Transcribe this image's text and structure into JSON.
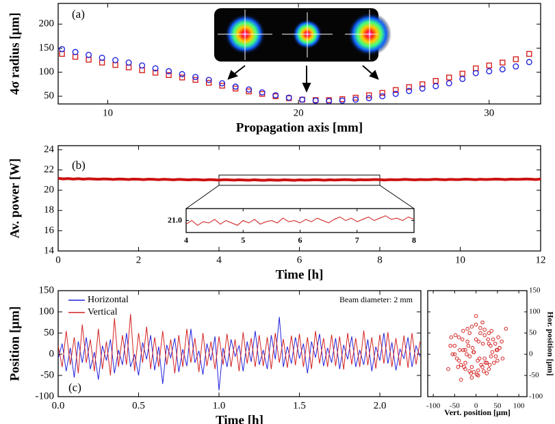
{
  "chart_data": [
    {
      "type": "scatter",
      "label": "(a)",
      "xlabel": "Propagation axis [mm]",
      "ylabel": "4σ radius [μm]",
      "xlim": [
        7.4,
        32.7
      ],
      "ylim": [
        34,
        243
      ],
      "xticks": [
        10,
        20,
        30
      ],
      "yticks": [
        50,
        100,
        150,
        200
      ],
      "x": [
        7.6,
        8.3,
        9,
        9.7,
        10.4,
        11.1,
        11.8,
        12.5,
        13.2,
        13.9,
        14.6,
        15.3,
        16,
        16.7,
        17.4,
        18.1,
        18.8,
        19.5,
        20.2,
        20.9,
        21.6,
        22.3,
        23,
        23.7,
        24.4,
        25.1,
        25.8,
        26.5,
        27.2,
        27.9,
        28.6,
        29.3,
        30,
        30.7,
        31.4,
        32.1
      ],
      "series": [
        {
          "color": "#d42020",
          "marker": "square",
          "values": [
            138,
            132,
            126,
            120,
            115,
            110,
            104,
            99,
            94,
            89,
            84,
            78,
            72,
            66,
            60,
            55,
            50,
            46,
            43,
            42,
            42,
            44,
            47,
            52,
            57,
            63,
            69,
            75,
            82,
            89,
            97,
            108,
            114,
            120,
            127,
            138
          ]
        },
        {
          "color": "#2222dd",
          "marker": "circle",
          "values": [
            148,
            142,
            136,
            130,
            125,
            120,
            114,
            108,
            102,
            96,
            90,
            84,
            77,
            70,
            64,
            58,
            52,
            47,
            43,
            41,
            40,
            41,
            43,
            46,
            50,
            55,
            61,
            66,
            71,
            77,
            86,
            98,
            102,
            106,
            112,
            121
          ]
        }
      ]
    },
    {
      "type": "line",
      "label": "(b)",
      "xlabel": "Time  [h]",
      "ylabel": "Av. power  [W]",
      "xlim": [
        0,
        12
      ],
      "ylim": [
        14,
        24.4
      ],
      "xticks": [
        0,
        2,
        4,
        6,
        8,
        10,
        12
      ],
      "yticks": [
        14,
        16,
        18,
        20,
        22,
        24
      ],
      "x": [
        0,
        0.125,
        0.25,
        0.375,
        0.5,
        0.625,
        0.75,
        0.875,
        1,
        1.125,
        1.25,
        1.375,
        1.5,
        1.625,
        1.75,
        1.875,
        2,
        2.125,
        2.25,
        2.375,
        2.5,
        2.625,
        2.75,
        2.875,
        3,
        3.125,
        3.25,
        3.375,
        3.5,
        3.625,
        3.75,
        3.875,
        4,
        4.125,
        4.25,
        4.375,
        4.5,
        4.625,
        4.75,
        4.875,
        5,
        5.125,
        5.25,
        5.375,
        5.5,
        5.625,
        5.75,
        5.875,
        6,
        6.125,
        6.25,
        6.375,
        6.5,
        6.625,
        6.75,
        6.875,
        7,
        7.125,
        7.25,
        7.375,
        7.5,
        7.625,
        7.75,
        7.875,
        8,
        8.125,
        8.25,
        8.375,
        8.5,
        8.625,
        8.75,
        8.875,
        9,
        9.125,
        9.25,
        9.375,
        9.5,
        9.625,
        9.75,
        9.875,
        10,
        10.125,
        10.25,
        10.375,
        10.5,
        10.625,
        10.75,
        10.875,
        11,
        11.125,
        11.25,
        11.375,
        11.5,
        11.625,
        11.75,
        11.875,
        12
      ],
      "series": [
        {
          "color": "#cc1111",
          "values": [
            21.18,
            21.12,
            21.15,
            21.1,
            21.14,
            21.09,
            21.13,
            21.11,
            21.08,
            21.12,
            21.1,
            21.07,
            21.11,
            21.09,
            21.06,
            21.1,
            21.08,
            21.05,
            21.09,
            21.07,
            21.04,
            21.08,
            21.06,
            21.03,
            21.07,
            21.05,
            21.02,
            21.06,
            21.04,
            21.01,
            21.05,
            21.03,
            21.0,
            21.04,
            21.02,
            21.0,
            21.03,
            21.01,
            20.99,
            21.03,
            21.0,
            20.98,
            21.02,
            21.0,
            20.99,
            21.03,
            21.01,
            20.98,
            21.02,
            21.0,
            21.01,
            21.04,
            21.02,
            20.99,
            21.03,
            21.01,
            21.02,
            21.05,
            21.03,
            21.0,
            21.04,
            21.02,
            21.03,
            21.06,
            21.04,
            21.01,
            21.05,
            21.03,
            21.04,
            21.07,
            21.05,
            21.02,
            21.06,
            21.04,
            21.05,
            21.08,
            21.06,
            21.03,
            21.07,
            21.05,
            21.06,
            21.09,
            21.07,
            21.04,
            21.08,
            21.06,
            21.07,
            21.1,
            21.08,
            21.05,
            21.09,
            21.07,
            21.08,
            21.11,
            21.09,
            21.06,
            21.1
          ]
        }
      ]
    },
    {
      "type": "line",
      "xlim": [
        4,
        8
      ],
      "ylim": [
        20.9,
        21.1
      ],
      "xticks": [
        4,
        5,
        6,
        7,
        8
      ],
      "yticks": [
        {
          "value": 21,
          "label": "21.0"
        }
      ],
      "x": [
        4,
        4.1,
        4.2,
        4.3,
        4.4,
        4.5,
        4.6,
        4.7,
        4.8,
        4.9,
        5,
        5.1,
        5.2,
        5.3,
        5.4,
        5.5,
        5.6,
        5.7,
        5.8,
        5.9,
        6,
        6.1,
        6.2,
        6.3,
        6.4,
        6.5,
        6.6,
        6.7,
        6.8,
        6.9,
        7,
        7.1,
        7.2,
        7.3,
        7.4,
        7.5,
        7.6,
        7.7,
        7.8,
        7.9,
        8
      ],
      "series": [
        {
          "color": "#cc1111",
          "values": [
            20.97,
            21.0,
            20.96,
            20.99,
            20.98,
            21.01,
            20.97,
            21.0,
            20.98,
            20.96,
            21.0,
            20.98,
            21.01,
            20.97,
            20.99,
            21.0,
            20.98,
            21.02,
            20.99,
            21.0,
            20.98,
            21.01,
            20.99,
            21.02,
            21.0,
            20.98,
            21.01,
            21.03,
            21.0,
            21.02,
            20.99,
            21.01,
            21.03,
            21.0,
            21.02,
            21.04,
            21.01,
            21.02,
            21.0,
            21.03,
            21.01
          ]
        }
      ]
    },
    {
      "type": "line",
      "label": "(c)",
      "xlabel": "Time  [h]",
      "ylabel": "Position  [μm]",
      "annotation": "Beam diameter: 2 mm",
      "legend": "upper left",
      "xlim": [
        0,
        2.255
      ],
      "ylim": [
        -100,
        150
      ],
      "xticks": [
        {
          "value": 0,
          "label": "0.0"
        },
        0.5,
        {
          "value": 1,
          "label": "1.0"
        },
        1.5,
        {
          "value": 2,
          "label": "2.0"
        }
      ],
      "yticks": [
        -100,
        -50,
        0,
        50,
        100,
        150
      ],
      "x": [
        0,
        0.025,
        0.05,
        0.075,
        0.1,
        0.125,
        0.15,
        0.175,
        0.2,
        0.225,
        0.25,
        0.275,
        0.3,
        0.325,
        0.35,
        0.375,
        0.4,
        0.425,
        0.45,
        0.475,
        0.5,
        0.525,
        0.55,
        0.575,
        0.6,
        0.625,
        0.65,
        0.675,
        0.7,
        0.725,
        0.75,
        0.775,
        0.8,
        0.825,
        0.85,
        0.875,
        0.9,
        0.925,
        0.95,
        0.975,
        1,
        1.025,
        1.05,
        1.075,
        1.1,
        1.125,
        1.15,
        1.175,
        1.2,
        1.225,
        1.25,
        1.275,
        1.3,
        1.325,
        1.35,
        1.375,
        1.4,
        1.425,
        1.45,
        1.475,
        1.5,
        1.525,
        1.55,
        1.575,
        1.6,
        1.625,
        1.65,
        1.675,
        1.7,
        1.725,
        1.75,
        1.775,
        1.8,
        1.825,
        1.85,
        1.875,
        1.9,
        1.925,
        1.95,
        1.975,
        2,
        2.025,
        2.05,
        2.075,
        2.1,
        2.125,
        2.15,
        2.175,
        2.2,
        2.225,
        2.25
      ],
      "series": [
        {
          "name": "Horizontal",
          "color": "#2222dd",
          "values": [
            -10,
            25,
            -40,
            15,
            -55,
            30,
            -20,
            40,
            -35,
            5,
            -60,
            20,
            -15,
            35,
            -45,
            10,
            -25,
            50,
            -30,
            0,
            -50,
            28,
            -12,
            45,
            -38,
            18,
            -70,
            22,
            -8,
            38,
            -42,
            12,
            -28,
            60,
            -20,
            8,
            -48,
            25,
            -15,
            42,
            -85,
            15,
            -30,
            35,
            -5,
            20,
            -40,
            30,
            -18,
            55,
            -25,
            10,
            -35,
            45,
            -12,
            88,
            -30,
            18,
            -22,
            40,
            -10,
            25,
            -45,
            30,
            -8,
            48,
            -28,
            15,
            -20,
            38,
            -35,
            22,
            -12,
            42,
            -30,
            10,
            -25,
            35,
            -40,
            18,
            -15,
            50,
            -22,
            28,
            -38,
            12,
            -10,
            40,
            -30,
            20,
            -5
          ]
        },
        {
          "name": "Vertical",
          "color": "#d42020",
          "values": [
            20,
            -30,
            55,
            -25,
            40,
            -45,
            70,
            -20,
            35,
            -40,
            60,
            -35,
            30,
            -50,
            85,
            -30,
            45,
            -25,
            95,
            -40,
            50,
            -20,
            65,
            -35,
            40,
            -30,
            55,
            -25,
            35,
            -45,
            45,
            -30,
            60,
            -20,
            38,
            -42,
            50,
            -28,
            30,
            -35,
            42,
            -25,
            48,
            -30,
            35,
            -40,
            52,
            -22,
            38,
            -30,
            45,
            -28,
            40,
            -35,
            50,
            -20,
            36,
            -32,
            44,
            -26,
            48,
            -30,
            40,
            -35,
            55,
            -22,
            38,
            -30,
            46,
            -28,
            42,
            -36,
            50,
            -24,
            38,
            -30,
            56,
            -26,
            40,
            -34,
            46,
            -22,
            52,
            -30,
            38,
            -28,
            44,
            -32,
            50,
            -24,
            30
          ]
        }
      ]
    },
    {
      "type": "scatter",
      "xlabel": "Vert. position [μm]",
      "ylabel": "Hor. position [μm]",
      "xlim": [
        -113,
        119
      ],
      "ylim": [
        -100,
        150
      ],
      "xticks": [
        -100,
        -50,
        0,
        50,
        100
      ],
      "yticks": [
        -100,
        -50,
        0,
        50,
        100,
        150
      ],
      "series": [
        {
          "color": "#d42020",
          "marker": "circle",
          "x": [
            -50,
            -40,
            -30,
            -20,
            -10,
            0,
            10,
            20,
            30,
            40,
            50,
            -45,
            -35,
            -25,
            -15,
            -5,
            5,
            15,
            25,
            35,
            45,
            55,
            -55,
            -40,
            -28,
            -12,
            2,
            18,
            32,
            48,
            60,
            -48,
            -32,
            -18,
            -6,
            8,
            22,
            38,
            52,
            -38,
            -22,
            -8,
            6,
            20,
            34,
            46,
            -25,
            -10,
            4,
            16,
            28,
            -58,
            62,
            -65,
            70,
            -30,
            -15,
            0,
            15,
            30,
            42,
            -42,
            -20,
            10,
            25,
            -5,
            12,
            -35,
            36,
            -50,
            55,
            -15,
            20,
            0,
            -60,
            50,
            -25,
            30,
            5,
            -10
          ],
          "values": [
            20,
            40,
            55,
            60,
            65,
            70,
            62,
            58,
            50,
            35,
            10,
            -10,
            -25,
            -35,
            -40,
            -42,
            -38,
            -30,
            -20,
            -5,
            25,
            15,
            0,
            -15,
            -30,
            -45,
            -48,
            -40,
            -25,
            10,
            30,
            45,
            35,
            20,
            5,
            -10,
            -20,
            5,
            40,
            10,
            0,
            15,
            30,
            45,
            20,
            -5,
            -20,
            -30,
            -15,
            25,
            35,
            40,
            -10,
            -35,
            60,
            10,
            -5,
            35,
            75,
            25,
            -20,
            -30,
            30,
            50,
            -45,
            5,
            -25,
            -60,
            55,
            0,
            15,
            50,
            -10,
            90,
            20,
            -15,
            10,
            -35,
            -50,
            -55
          ]
        }
      ]
    }
  ]
}
